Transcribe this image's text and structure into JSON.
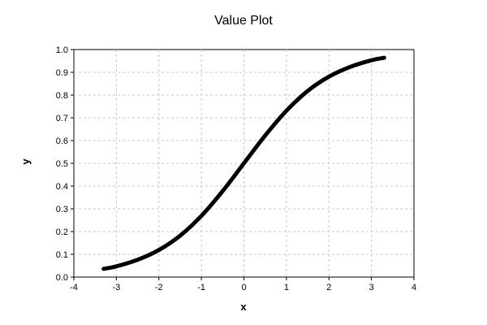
{
  "chart_data": {
    "type": "line",
    "title": "Value Plot",
    "xlabel": "x",
    "ylabel": "y",
    "xlim": [
      -4,
      4
    ],
    "ylim": [
      0,
      1.0
    ],
    "x_ticks": [
      "-4",
      "-3",
      "-2",
      "-1",
      "0",
      "1",
      "2",
      "3",
      "4"
    ],
    "y_ticks": [
      "0.0",
      "0.1",
      "0.2",
      "0.3",
      "0.4",
      "0.5",
      "0.6",
      "0.7",
      "0.8",
      "0.9",
      "1.0"
    ],
    "grid": true,
    "legend": "none",
    "series": [
      {
        "color": "#000000",
        "x": [
          -3.3,
          -3.0,
          -2.5,
          -2.0,
          -1.5,
          -1.0,
          -0.5,
          0.0,
          0.5,
          1.0,
          1.5,
          2.0,
          2.5,
          3.0,
          3.3
        ],
        "y": [
          0.036,
          0.047,
          0.076,
          0.119,
          0.182,
          0.269,
          0.378,
          0.5,
          0.622,
          0.731,
          0.818,
          0.881,
          0.924,
          0.953,
          0.964
        ]
      }
    ]
  }
}
